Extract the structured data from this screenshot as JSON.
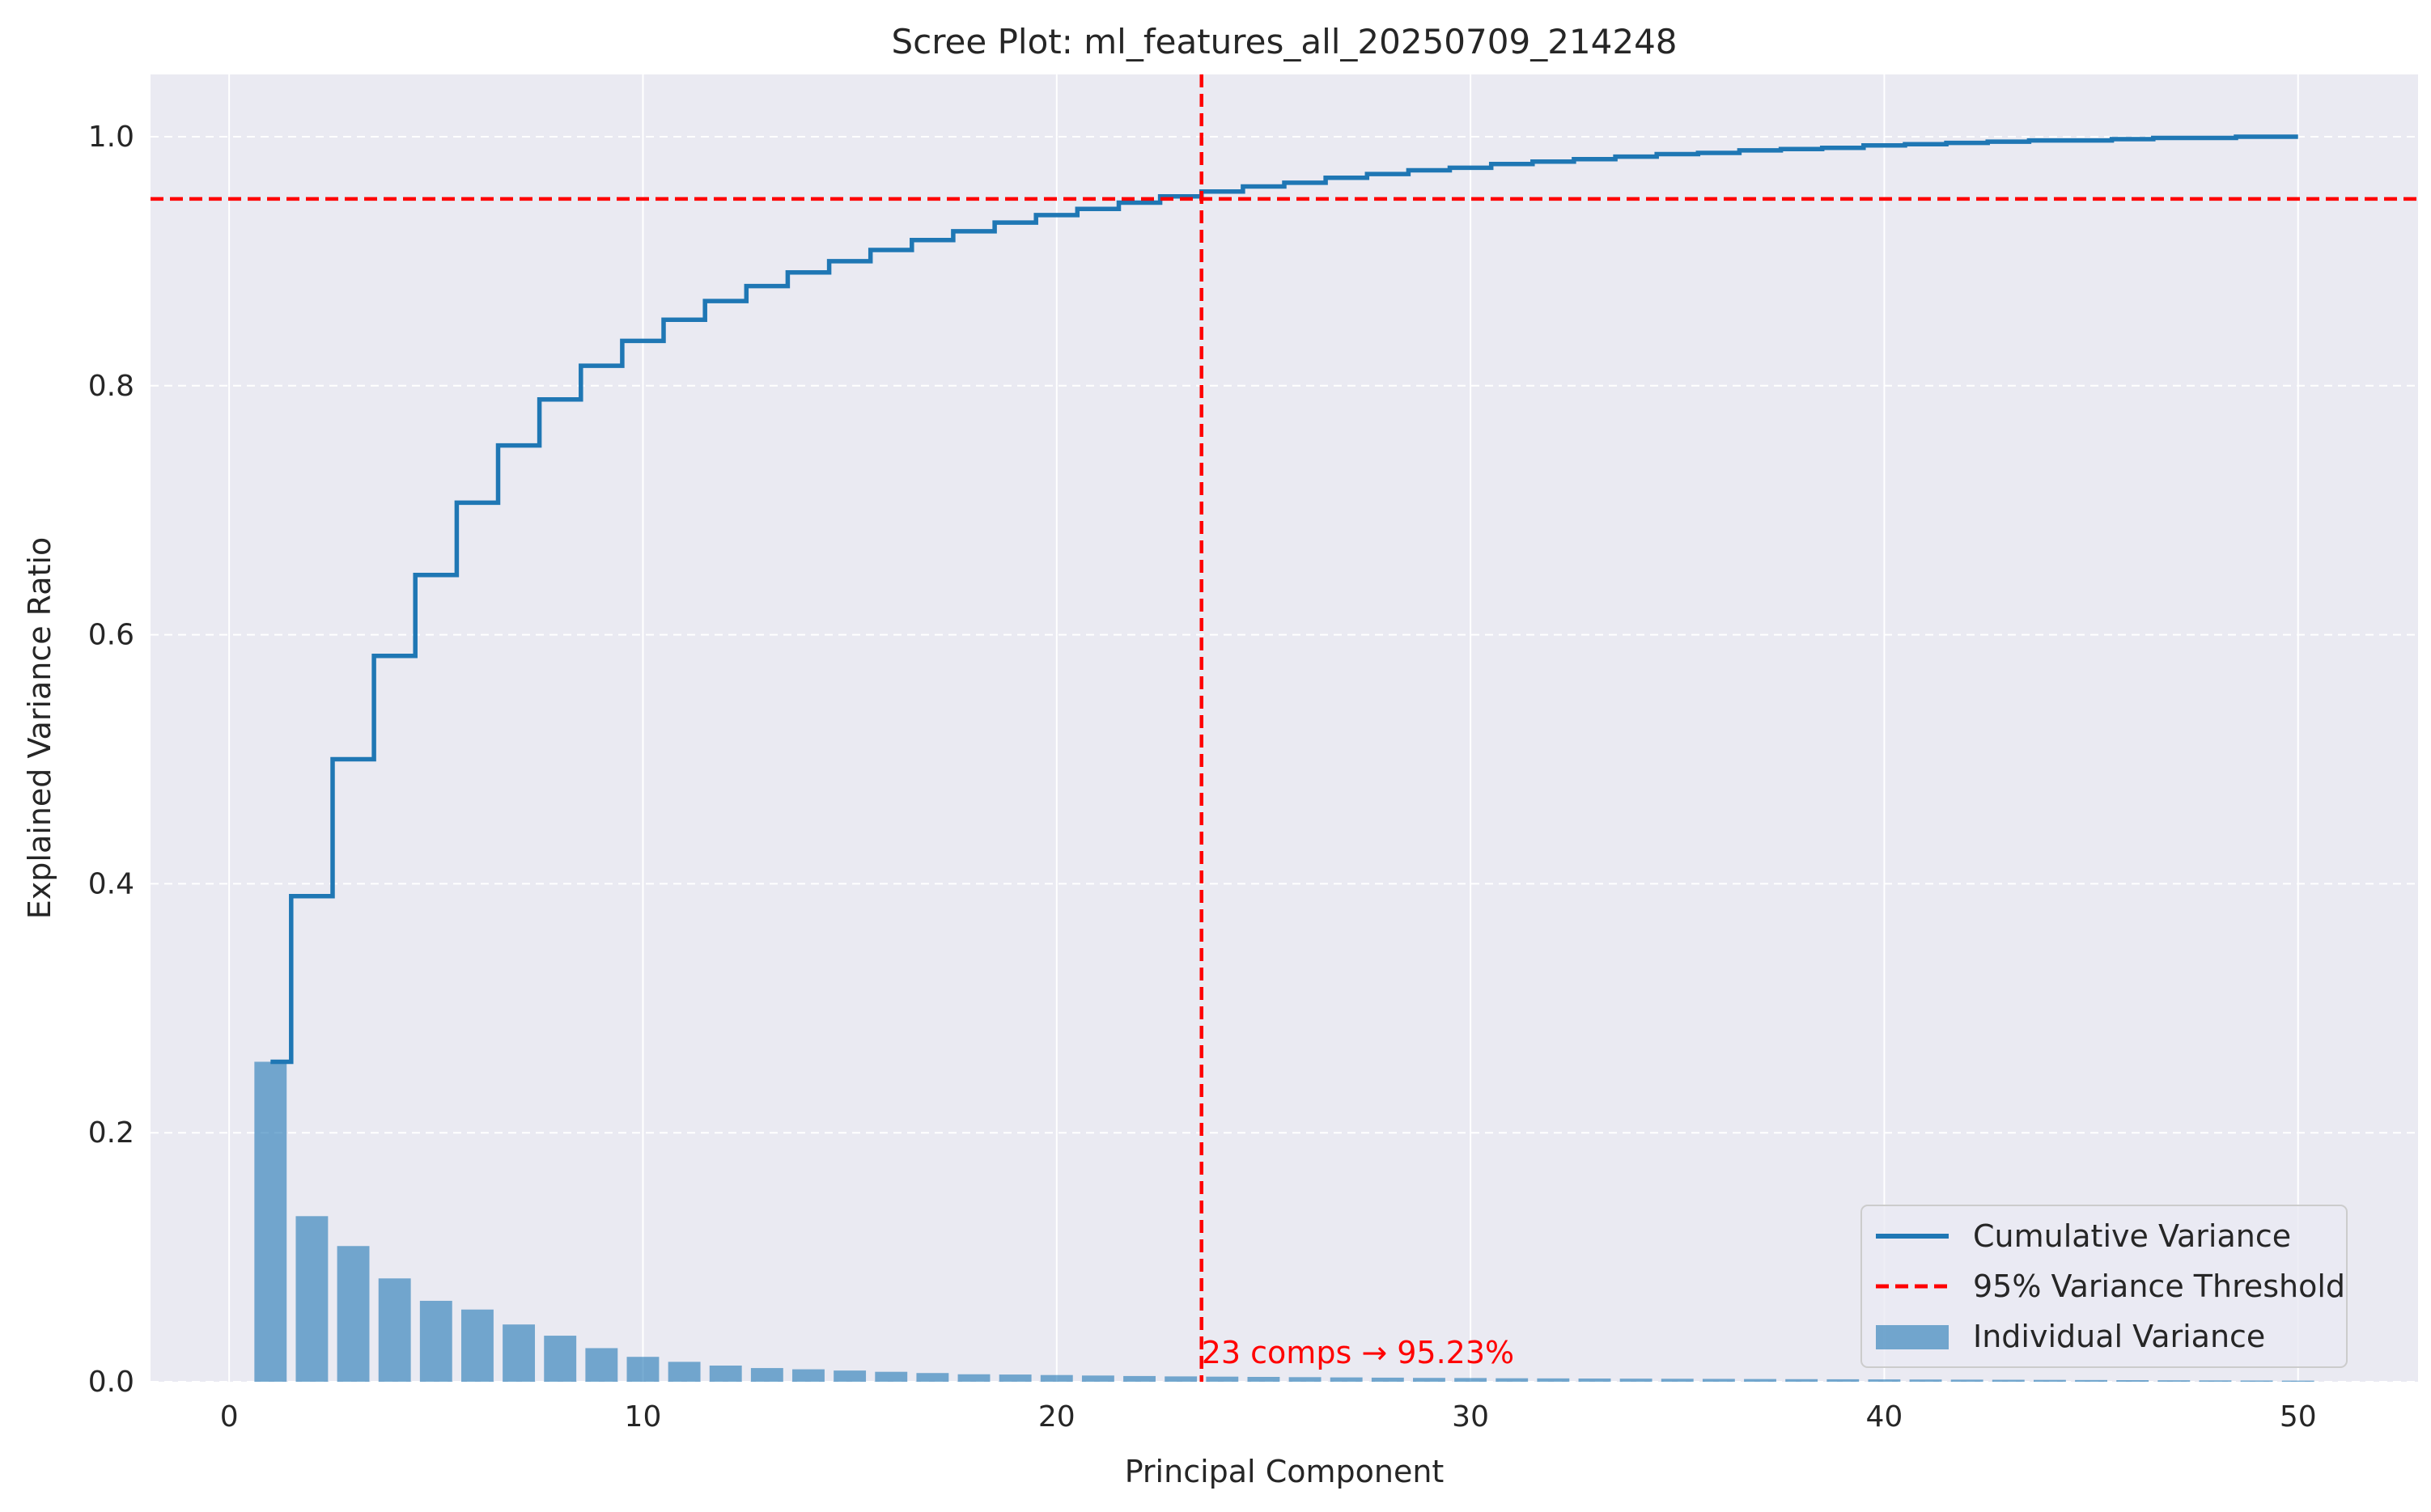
{
  "chart_data": {
    "type": "bar",
    "title": "Scree Plot: ml_features_all_20250709_214248",
    "xlabel": "Principal Component",
    "ylabel": "Explained Variance Ratio",
    "xlim": [
      -1.9,
      52.9
    ],
    "ylim": [
      0,
      1.05
    ],
    "x_ticks": [
      0,
      10,
      20,
      30,
      40,
      50
    ],
    "y_ticks": [
      0.0,
      0.2,
      0.4,
      0.6,
      0.8,
      1.0
    ],
    "x_tick_labels": [
      "0",
      "10",
      "20",
      "30",
      "40",
      "50"
    ],
    "y_tick_labels": [
      "0.0",
      "0.2",
      "0.4",
      "0.6",
      "0.8",
      "1.0"
    ],
    "grid": true,
    "legend_position": "bottom-right",
    "components": [
      1,
      2,
      3,
      4,
      5,
      6,
      7,
      8,
      9,
      10,
      11,
      12,
      13,
      14,
      15,
      16,
      17,
      18,
      19,
      20,
      21,
      22,
      23,
      24,
      25,
      26,
      27,
      28,
      29,
      30,
      31,
      32,
      33,
      34,
      35,
      36,
      37,
      38,
      39,
      40,
      41,
      42,
      43,
      44,
      45,
      46,
      47,
      48,
      49,
      50
    ],
    "series": [
      {
        "name": "Individual Variance",
        "kind": "bar",
        "color": "#1f77b4",
        "values": [
          0.257,
          0.133,
          0.109,
          0.083,
          0.065,
          0.058,
          0.046,
          0.037,
          0.027,
          0.02,
          0.016,
          0.013,
          0.011,
          0.01,
          0.009,
          0.008,
          0.007,
          0.006,
          0.0058,
          0.0054,
          0.005,
          0.0046,
          0.0043,
          0.0041,
          0.0039,
          0.0037,
          0.0035,
          0.0033,
          0.0031,
          0.003,
          0.0028,
          0.0027,
          0.0026,
          0.0025,
          0.0024,
          0.0023,
          0.0022,
          0.0021,
          0.002,
          0.0019,
          0.0018,
          0.0017,
          0.0016,
          0.0015,
          0.0014,
          0.0013,
          0.0012,
          0.0011,
          0.001,
          0.0009
        ]
      },
      {
        "name": "Cumulative Variance",
        "kind": "step",
        "color": "#1f77b4",
        "values": [
          0.257,
          0.39,
          0.5,
          0.583,
          0.648,
          0.706,
          0.752,
          0.789,
          0.816,
          0.836,
          0.853,
          0.868,
          0.88,
          0.891,
          0.9,
          0.909,
          0.917,
          0.924,
          0.931,
          0.937,
          0.942,
          0.947,
          0.952,
          0.956,
          0.96,
          0.963,
          0.967,
          0.97,
          0.973,
          0.975,
          0.978,
          0.98,
          0.982,
          0.984,
          0.986,
          0.987,
          0.989,
          0.99,
          0.991,
          0.993,
          0.994,
          0.995,
          0.996,
          0.997,
          0.997,
          0.998,
          0.999,
          0.999,
          1.0,
          1.0
        ]
      }
    ],
    "threshold": {
      "name": "95% Variance Threshold",
      "y": 0.95,
      "x": 23.5,
      "color": "#ff0000"
    },
    "annotation": {
      "text": "23 comps → 95.23%",
      "x": 23.5,
      "y": 0.015,
      "color": "#ff0000"
    },
    "legend": [
      {
        "label": "Cumulative Variance",
        "kind": "line",
        "color": "#1f77b4"
      },
      {
        "label": "95% Variance Threshold",
        "kind": "dashed",
        "color": "#ff0000"
      },
      {
        "label": "Individual Variance",
        "kind": "patch",
        "color": "#1f77b4"
      }
    ]
  }
}
